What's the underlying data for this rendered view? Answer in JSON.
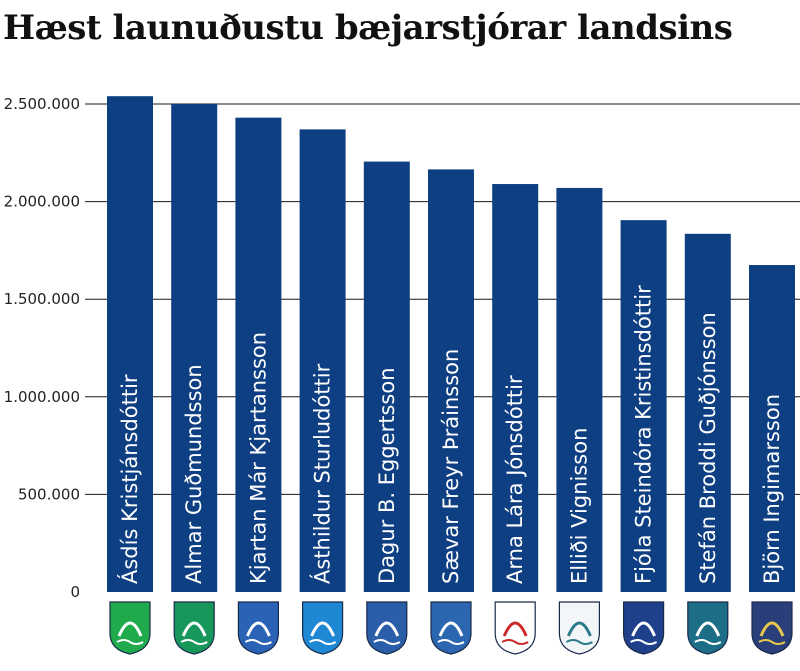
{
  "chart_data": {
    "type": "bar",
    "title": "Hæst launuðustu bæjarstjórar landsins",
    "xlabel": "",
    "ylabel": "",
    "ylim": [
      0,
      2500000
    ],
    "yticks": [
      0,
      500000,
      1000000,
      1500000,
      2000000,
      2500000
    ],
    "ytick_labels": [
      "0",
      "500.000",
      "1.000.000",
      "1.500.000",
      "2.000.000",
      "2.500.000"
    ],
    "grid": true,
    "bar_color": "#0f3f83",
    "categories": [
      "Ásdís Kristjánsdóttir",
      "Almar Guðmundsson",
      "Kjartan Már Kjartansson",
      "Ásthildur Sturludóttir",
      "Dagur B. Eggertsson",
      "Sævar Freyr Þráinsson",
      "Arna Lára Jónsdóttir",
      "Elliði Vignisson",
      "Fjóla Steindóra Kristinsdóttir",
      "Stefán Broddi Guðjónsson",
      "Björn Ingimarsson"
    ],
    "values": [
      2540000,
      2500000,
      2430000,
      2370000,
      2205000,
      2165000,
      2090000,
      2070000,
      1905000,
      1835000,
      1675000
    ],
    "crests": [
      {
        "name": "kopavogur-crest-icon",
        "bg": "#1faa4b",
        "fg": "#ffffff"
      },
      {
        "name": "gardabaer-crest-icon",
        "bg": "#17975a",
        "fg": "#ffffff"
      },
      {
        "name": "reykjanesbaer-crest-icon",
        "bg": "#2a63b5",
        "fg": "#ffffff"
      },
      {
        "name": "akureyri-crest-icon",
        "bg": "#1f88d4",
        "fg": "#ffffff"
      },
      {
        "name": "reykjavik-crest-icon",
        "bg": "#2b5ea8",
        "fg": "#ffffff"
      },
      {
        "name": "akranes-crest-icon",
        "bg": "#2a67b0",
        "fg": "#ffffff"
      },
      {
        "name": "isafjordur-crest-icon",
        "bg": "#ffffff",
        "fg": "#cc2a2a"
      },
      {
        "name": "olfus-crest-icon",
        "bg": "#f2f6f8",
        "fg": "#2a7a8a"
      },
      {
        "name": "arborg-crest-icon",
        "bg": "#1e3f8a",
        "fg": "#ffffff"
      },
      {
        "name": "borgarbyggd-crest-icon",
        "bg": "#1c6e86",
        "fg": "#ffffff"
      },
      {
        "name": "mulathing-crest-icon",
        "bg": "#2a3f7a",
        "fg": "#e8c84a"
      }
    ]
  }
}
